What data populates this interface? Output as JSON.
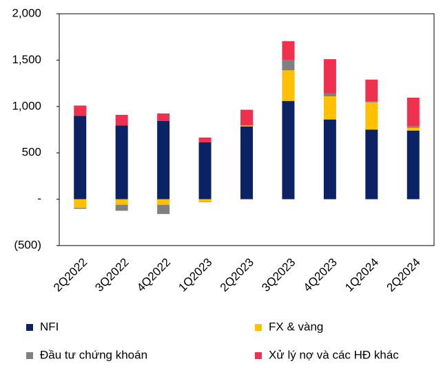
{
  "chart_data": {
    "type": "stacked_bar",
    "categories": [
      "2Q2022",
      "3Q2022",
      "4Q2022",
      "1Q2023",
      "2Q2023",
      "3Q2023",
      "4Q2023",
      "1Q2024",
      "2Q2024"
    ],
    "series": [
      {
        "name": "NFI",
        "color": "#0b2265",
        "values": [
          900,
          795,
          845,
          615,
          785,
          1060,
          860,
          750,
          740
        ]
      },
      {
        "name": "FX & vàng",
        "color": "#ffc000",
        "values": [
          -95,
          -60,
          -60,
          -25,
          10,
          330,
          250,
          295,
          30
        ]
      },
      {
        "name": "Đầu tư chứng khoán",
        "color": "#808080",
        "values": [
          -10,
          -65,
          -100,
          -5,
          0,
          110,
          30,
          10,
          20
        ]
      },
      {
        "name": "Xử lý nợ và các HĐ khác",
        "color": "#f0304f",
        "values": [
          110,
          115,
          80,
          50,
          170,
          205,
          370,
          235,
          305
        ]
      }
    ],
    "ylim": [
      -500,
      2000
    ],
    "yticks": [
      {
        "value": -500,
        "label": "(500)"
      },
      {
        "value": 0,
        "label": "-"
      },
      500,
      {
        "value": 1000,
        "label": "1,000"
      },
      {
        "value": 1500,
        "label": "1,500"
      },
      {
        "value": 2000,
        "label": "2,000"
      }
    ]
  }
}
